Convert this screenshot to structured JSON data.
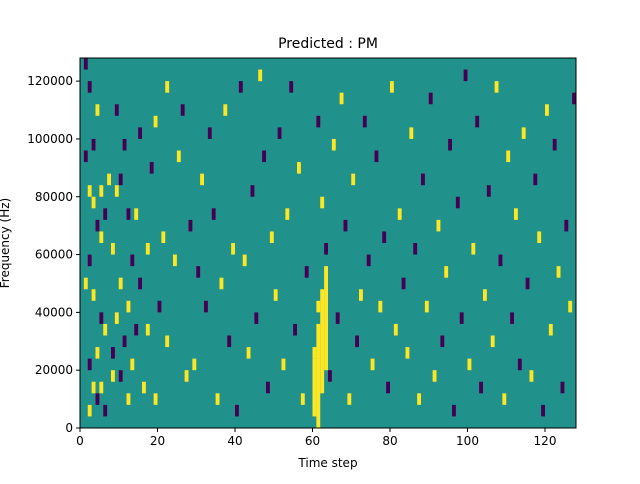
{
  "chart_data": {
    "type": "heatmap",
    "title": "Predicted : PM",
    "xlabel": "Time step",
    "ylabel": "Frequency (Hz)",
    "xlim": [
      0,
      128
    ],
    "ylim": [
      0,
      128000
    ],
    "x_ticks": [
      0,
      20,
      40,
      60,
      80,
      100,
      120
    ],
    "y_ticks": [
      0,
      20000,
      40000,
      60000,
      80000,
      100000,
      120000
    ],
    "x_tick_labels": [
      "0",
      "20",
      "40",
      "60",
      "80",
      "100",
      "120"
    ],
    "y_tick_labels": [
      "0",
      "20000",
      "40000",
      "60000",
      "80000",
      "100000",
      "120000"
    ],
    "grid": false,
    "legend": "none",
    "colors": {
      "background": "#21918c",
      "high": "#fde725",
      "low": "#440154"
    },
    "levels": {
      "background": 0,
      "high": 1,
      "low": -1
    },
    "cell_height_hz": 4000,
    "cells": [
      {
        "t": 1,
        "f": 124000,
        "v": -1
      },
      {
        "t": 2,
        "f": 116000,
        "v": -1
      },
      {
        "t": 2,
        "f": 80000,
        "v": 1
      },
      {
        "t": 4,
        "f": 108000,
        "v": 1
      },
      {
        "t": 3,
        "f": 96000,
        "v": -1
      },
      {
        "t": 1,
        "f": 92000,
        "v": -1
      },
      {
        "t": 5,
        "f": 80000,
        "v": 1
      },
      {
        "t": 3,
        "f": 76000,
        "v": 1
      },
      {
        "t": 6,
        "f": 72000,
        "v": -1
      },
      {
        "t": 4,
        "f": 68000,
        "v": -1
      },
      {
        "t": 5,
        "f": 64000,
        "v": 1
      },
      {
        "t": 2,
        "f": 56000,
        "v": -1
      },
      {
        "t": 1,
        "f": 48000,
        "v": 1
      },
      {
        "t": 3,
        "f": 44000,
        "v": 1
      },
      {
        "t": 5,
        "f": 36000,
        "v": -1
      },
      {
        "t": 6,
        "f": 32000,
        "v": 1
      },
      {
        "t": 4,
        "f": 24000,
        "v": 1
      },
      {
        "t": 2,
        "f": 20000,
        "v": -1
      },
      {
        "t": 3,
        "f": 12000,
        "v": 1
      },
      {
        "t": 4,
        "f": 8000,
        "v": -1
      },
      {
        "t": 2,
        "f": 4000,
        "v": 1
      },
      {
        "t": 5,
        "f": 12000,
        "v": 1
      },
      {
        "t": 6,
        "f": 4000,
        "v": -1
      },
      {
        "t": 7,
        "f": 84000,
        "v": 1
      },
      {
        "t": 8,
        "f": 60000,
        "v": 1
      },
      {
        "t": 8,
        "f": 16000,
        "v": 1
      },
      {
        "t": 8,
        "f": 24000,
        "v": -1
      },
      {
        "t": 9,
        "f": 108000,
        "v": -1
      },
      {
        "t": 10,
        "f": 84000,
        "v": -1
      },
      {
        "t": 9,
        "f": 80000,
        "v": 1
      },
      {
        "t": 10,
        "f": 48000,
        "v": 1
      },
      {
        "t": 9,
        "f": 36000,
        "v": 1
      },
      {
        "t": 10,
        "f": 16000,
        "v": -1
      },
      {
        "t": 11,
        "f": 96000,
        "v": -1
      },
      {
        "t": 11,
        "f": 28000,
        "v": -1
      },
      {
        "t": 12,
        "f": 72000,
        "v": -1
      },
      {
        "t": 12,
        "f": 40000,
        "v": 1
      },
      {
        "t": 12,
        "f": 8000,
        "v": 1
      },
      {
        "t": 14,
        "f": 72000,
        "v": 1
      },
      {
        "t": 13,
        "f": 56000,
        "v": -1
      },
      {
        "t": 14,
        "f": 32000,
        "v": -1
      },
      {
        "t": 13,
        "f": 20000,
        "v": 1
      },
      {
        "t": 15,
        "f": 100000,
        "v": -1
      },
      {
        "t": 15,
        "f": 48000,
        "v": -1
      },
      {
        "t": 16,
        "f": 12000,
        "v": 1
      },
      {
        "t": 17,
        "f": 60000,
        "v": 1
      },
      {
        "t": 17,
        "f": 32000,
        "v": 1
      },
      {
        "t": 18,
        "f": 88000,
        "v": -1
      },
      {
        "t": 19,
        "f": 104000,
        "v": 1
      },
      {
        "t": 19,
        "f": 8000,
        "v": 1
      },
      {
        "t": 20,
        "f": 40000,
        "v": -1
      },
      {
        "t": 21,
        "f": 64000,
        "v": 1
      },
      {
        "t": 22,
        "f": 116000,
        "v": 1
      },
      {
        "t": 22,
        "f": 28000,
        "v": 1
      },
      {
        "t": 24,
        "f": 56000,
        "v": 1
      },
      {
        "t": 25,
        "f": 92000,
        "v": 1
      },
      {
        "t": 26,
        "f": 108000,
        "v": -1
      },
      {
        "t": 27,
        "f": 16000,
        "v": 1
      },
      {
        "t": 28,
        "f": 68000,
        "v": -1
      },
      {
        "t": 29,
        "f": 20000,
        "v": 1
      },
      {
        "t": 30,
        "f": 52000,
        "v": -1
      },
      {
        "t": 31,
        "f": 84000,
        "v": 1
      },
      {
        "t": 32,
        "f": 40000,
        "v": -1
      },
      {
        "t": 33,
        "f": 100000,
        "v": -1
      },
      {
        "t": 34,
        "f": 72000,
        "v": -1
      },
      {
        "t": 35,
        "f": 8000,
        "v": 1
      },
      {
        "t": 36,
        "f": 48000,
        "v": 1
      },
      {
        "t": 37,
        "f": 108000,
        "v": 1
      },
      {
        "t": 38,
        "f": 28000,
        "v": -1
      },
      {
        "t": 39,
        "f": 60000,
        "v": 1
      },
      {
        "t": 40,
        "f": 4000,
        "v": -1
      },
      {
        "t": 41,
        "f": 116000,
        "v": -1
      },
      {
        "t": 42,
        "f": 56000,
        "v": 1
      },
      {
        "t": 43,
        "f": 24000,
        "v": 1
      },
      {
        "t": 44,
        "f": 80000,
        "v": -1
      },
      {
        "t": 45,
        "f": 36000,
        "v": -1
      },
      {
        "t": 46,
        "f": 120000,
        "v": 1
      },
      {
        "t": 47,
        "f": 92000,
        "v": -1
      },
      {
        "t": 48,
        "f": 12000,
        "v": -1
      },
      {
        "t": 49,
        "f": 64000,
        "v": 1
      },
      {
        "t": 50,
        "f": 44000,
        "v": 1
      },
      {
        "t": 51,
        "f": 100000,
        "v": -1
      },
      {
        "t": 52,
        "f": 20000,
        "v": 1
      },
      {
        "t": 53,
        "f": 72000,
        "v": 1
      },
      {
        "t": 54,
        "f": 116000,
        "v": -1
      },
      {
        "t": 55,
        "f": 32000,
        "v": -1
      },
      {
        "t": 56,
        "f": 88000,
        "v": 1
      },
      {
        "t": 57,
        "f": 8000,
        "v": 1
      },
      {
        "t": 58,
        "f": 52000,
        "v": -1
      },
      {
        "t": 60,
        "f": 24000,
        "v": 1
      },
      {
        "t": 61,
        "f": 104000,
        "v": -1
      },
      {
        "t": 61,
        "f": 40000,
        "v": 1
      },
      {
        "t": 62,
        "f": 76000,
        "v": 1
      },
      {
        "t": 63,
        "f": 60000,
        "v": -1
      },
      {
        "t": 64,
        "f": 16000,
        "v": -1
      },
      {
        "t": 65,
        "f": 96000,
        "v": 1
      },
      {
        "t": 66,
        "f": 36000,
        "v": -1
      },
      {
        "t": 67,
        "f": 112000,
        "v": 1
      },
      {
        "t": 68,
        "f": 68000,
        "v": -1
      },
      {
        "t": 69,
        "f": 8000,
        "v": 1
      },
      {
        "t": 70,
        "f": 84000,
        "v": 1
      },
      {
        "t": 71,
        "f": 28000,
        "v": -1
      },
      {
        "t": 72,
        "f": 44000,
        "v": 1
      },
      {
        "t": 73,
        "f": 104000,
        "v": -1
      },
      {
        "t": 74,
        "f": 56000,
        "v": -1
      },
      {
        "t": 75,
        "f": 20000,
        "v": 1
      },
      {
        "t": 76,
        "f": 92000,
        "v": -1
      },
      {
        "t": 77,
        "f": 40000,
        "v": 1
      },
      {
        "t": 78,
        "f": 64000,
        "v": -1
      },
      {
        "t": 79,
        "f": 12000,
        "v": -1
      },
      {
        "t": 80,
        "f": 116000,
        "v": 1
      },
      {
        "t": 81,
        "f": 32000,
        "v": 1
      },
      {
        "t": 82,
        "f": 72000,
        "v": 1
      },
      {
        "t": 83,
        "f": 48000,
        "v": -1
      },
      {
        "t": 84,
        "f": 24000,
        "v": 1
      },
      {
        "t": 85,
        "f": 100000,
        "v": 1
      },
      {
        "t": 86,
        "f": 60000,
        "v": -1
      },
      {
        "t": 87,
        "f": 8000,
        "v": 1
      },
      {
        "t": 88,
        "f": 84000,
        "v": -1
      },
      {
        "t": 89,
        "f": 40000,
        "v": 1
      },
      {
        "t": 90,
        "f": 112000,
        "v": -1
      },
      {
        "t": 91,
        "f": 16000,
        "v": 1
      },
      {
        "t": 92,
        "f": 68000,
        "v": 1
      },
      {
        "t": 93,
        "f": 28000,
        "v": -1
      },
      {
        "t": 94,
        "f": 52000,
        "v": 1
      },
      {
        "t": 95,
        "f": 96000,
        "v": -1
      },
      {
        "t": 96,
        "f": 4000,
        "v": -1
      },
      {
        "t": 97,
        "f": 76000,
        "v": -1
      },
      {
        "t": 98,
        "f": 36000,
        "v": -1
      },
      {
        "t": 99,
        "f": 120000,
        "v": -1
      },
      {
        "t": 100,
        "f": 20000,
        "v": 1
      },
      {
        "t": 101,
        "f": 60000,
        "v": 1
      },
      {
        "t": 102,
        "f": 104000,
        "v": -1
      },
      {
        "t": 103,
        "f": 12000,
        "v": -1
      },
      {
        "t": 104,
        "f": 44000,
        "v": 1
      },
      {
        "t": 105,
        "f": 80000,
        "v": -1
      },
      {
        "t": 106,
        "f": 28000,
        "v": 1
      },
      {
        "t": 107,
        "f": 116000,
        "v": 1
      },
      {
        "t": 108,
        "f": 56000,
        "v": -1
      },
      {
        "t": 109,
        "f": 8000,
        "v": 1
      },
      {
        "t": 110,
        "f": 92000,
        "v": 1
      },
      {
        "t": 111,
        "f": 36000,
        "v": -1
      },
      {
        "t": 112,
        "f": 72000,
        "v": 1
      },
      {
        "t": 113,
        "f": 20000,
        "v": -1
      },
      {
        "t": 114,
        "f": 100000,
        "v": 1
      },
      {
        "t": 115,
        "f": 48000,
        "v": -1
      },
      {
        "t": 116,
        "f": 16000,
        "v": 1
      },
      {
        "t": 117,
        "f": 84000,
        "v": -1
      },
      {
        "t": 118,
        "f": 64000,
        "v": 1
      },
      {
        "t": 119,
        "f": 4000,
        "v": -1
      },
      {
        "t": 120,
        "f": 108000,
        "v": 1
      },
      {
        "t": 121,
        "f": 32000,
        "v": 1
      },
      {
        "t": 122,
        "f": 96000,
        "v": -1
      },
      {
        "t": 123,
        "f": 52000,
        "v": 1
      },
      {
        "t": 124,
        "f": 12000,
        "v": -1
      },
      {
        "t": 125,
        "f": 68000,
        "v": -1
      },
      {
        "t": 126,
        "f": 40000,
        "v": 1
      },
      {
        "t": 127,
        "f": 112000,
        "v": -1
      }
    ],
    "column_segments": [
      {
        "t": 60,
        "f_from": 4000,
        "f_to": 24000,
        "v": 1
      },
      {
        "t": 61,
        "f_from": 0,
        "f_to": 36000,
        "v": 1
      },
      {
        "t": 62,
        "f_from": 12000,
        "f_to": 48000,
        "v": 1
      },
      {
        "t": 63,
        "f_from": 20000,
        "f_to": 56000,
        "v": 1
      }
    ]
  }
}
